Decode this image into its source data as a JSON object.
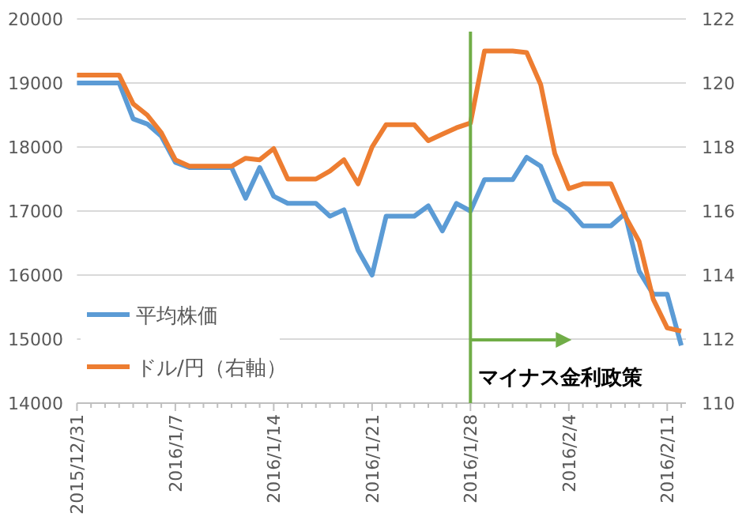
{
  "chart_data": {
    "type": "line",
    "x": [
      "2015-12-31",
      "2016-01-03",
      "2016-01-04",
      "2016-01-05",
      "2016-01-06",
      "2016-01-07",
      "2016-01-08",
      "2016-01-11",
      "2016-01-12",
      "2016-01-13",
      "2016-01-14",
      "2016-01-15",
      "2016-01-17",
      "2016-01-18",
      "2016-01-19",
      "2016-01-20",
      "2016-01-21",
      "2016-01-22",
      "2016-01-24",
      "2016-01-25",
      "2016-01-26",
      "2016-01-27",
      "2016-01-28",
      "2016-01-29",
      "2016-01-31",
      "2016-02-01",
      "2016-02-02",
      "2016-02-03",
      "2016-02-04",
      "2016-02-05",
      "2016-02-07",
      "2016-02-08",
      "2016-02-09",
      "2016-02-10",
      "2016-02-11",
      "2016-02-12"
    ],
    "series": [
      {
        "name": "平均株価",
        "color": "#5b9bd5",
        "values": [
          19000,
          19000,
          18440,
          18360,
          18170,
          17760,
          17680,
          17680,
          17200,
          17680,
          17230,
          17120,
          17120,
          16920,
          17020,
          16390,
          16000,
          16920,
          16920,
          17080,
          16690,
          17120,
          17000,
          17490,
          17490,
          17840,
          17700,
          17170,
          17020,
          16770,
          16770,
          16960,
          16060,
          15700,
          15700,
          14900
        ]
      },
      {
        "name": "ドル/円（右軸）",
        "color": "#ed7d31",
        "axis": "y2",
        "values": [
          120.25,
          120.25,
          119.35,
          119.0,
          118.45,
          117.6,
          117.4,
          117.4,
          117.65,
          117.6,
          117.95,
          117.0,
          117.0,
          117.25,
          117.6,
          116.85,
          118.0,
          118.7,
          118.7,
          118.2,
          118.4,
          118.6,
          118.75,
          121.0,
          121.0,
          120.95,
          119.95,
          117.8,
          116.7,
          116.85,
          116.85,
          115.85,
          115.05,
          113.25,
          112.35,
          112.25
        ]
      }
    ],
    "xlim": [
      "2015-12-31",
      "2016-02-12T08:00"
    ],
    "xticks": [
      {
        "value": "2015-12-31",
        "label": "2015/12/31"
      },
      {
        "value": "2016-01-01",
        "label": null
      },
      {
        "value": "2016-01-02",
        "label": null
      },
      {
        "value": "2016-01-03",
        "label": null
      },
      {
        "value": "2016-01-04",
        "label": null
      },
      {
        "value": "2016-01-05",
        "label": null
      },
      {
        "value": "2016-01-06",
        "label": null
      },
      {
        "value": "2016-01-07",
        "label": "2016/1/7"
      },
      {
        "value": "2016-01-08",
        "label": null
      },
      {
        "value": "2016-01-09",
        "label": null
      },
      {
        "value": "2016-01-10",
        "label": null
      },
      {
        "value": "2016-01-11",
        "label": null
      },
      {
        "value": "2016-01-12",
        "label": null
      },
      {
        "value": "2016-01-13",
        "label": null
      },
      {
        "value": "2016-01-14",
        "label": "2016/1/14"
      },
      {
        "value": "2016-01-15",
        "label": null
      },
      {
        "value": "2016-01-16",
        "label": null
      },
      {
        "value": "2016-01-17",
        "label": null
      },
      {
        "value": "2016-01-18",
        "label": null
      },
      {
        "value": "2016-01-19",
        "label": null
      },
      {
        "value": "2016-01-20",
        "label": null
      },
      {
        "value": "2016-01-21",
        "label": "2016/1/21"
      },
      {
        "value": "2016-01-22",
        "label": null
      },
      {
        "value": "2016-01-23",
        "label": null
      },
      {
        "value": "2016-01-24",
        "label": null
      },
      {
        "value": "2016-01-25",
        "label": null
      },
      {
        "value": "2016-01-26",
        "label": null
      },
      {
        "value": "2016-01-27",
        "label": null
      },
      {
        "value": "2016-01-28",
        "label": "2016/1/28"
      },
      {
        "value": "2016-01-29",
        "label": null
      },
      {
        "value": "2016-01-30",
        "label": null
      },
      {
        "value": "2016-01-31",
        "label": null
      },
      {
        "value": "2016-02-01",
        "label": null
      },
      {
        "value": "2016-02-02",
        "label": null
      },
      {
        "value": "2016-02-03",
        "label": null
      },
      {
        "value": "2016-02-04",
        "label": "2016/2/4"
      },
      {
        "value": "2016-02-05",
        "label": null
      },
      {
        "value": "2016-02-06",
        "label": null
      },
      {
        "value": "2016-02-07",
        "label": null
      },
      {
        "value": "2016-02-08",
        "label": null
      },
      {
        "value": "2016-02-09",
        "label": null
      },
      {
        "value": "2016-02-10",
        "label": null
      },
      {
        "value": "2016-02-11",
        "label": "2016/2/11"
      },
      {
        "value": "2016-02-12",
        "label": null
      }
    ],
    "ylim": [
      14000,
      20000
    ],
    "yticks": [
      14000,
      15000,
      16000,
      17000,
      18000,
      19000,
      20000
    ],
    "y2lim": [
      110,
      122
    ],
    "y2ticks": [
      110,
      112,
      114,
      116,
      118,
      120,
      122
    ],
    "ref_lines": [
      {
        "axis": "x",
        "value": "2016-01-28",
        "label": "マイナス金利政策",
        "color": "#70ad47"
      }
    ],
    "grid": "y",
    "legend": "bottom left",
    "line_style": "solid",
    "marker": "none"
  }
}
